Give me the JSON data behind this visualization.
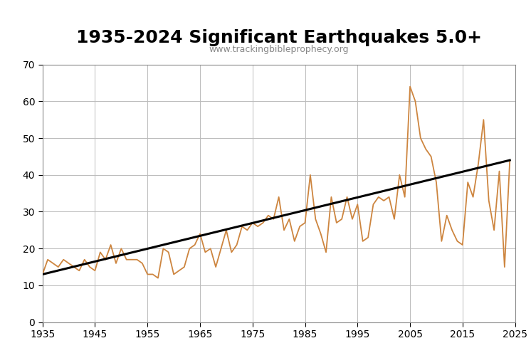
{
  "title": "1935-2024 Significant Earthquakes 5.0+",
  "subtitle": "www.trackingbibleprophecy.org",
  "line_color": "#cd853f",
  "trend_color": "#000000",
  "background_color": "#ffffff",
  "grid_color": "#bbbbbb",
  "title_fontsize": 18,
  "subtitle_fontsize": 9,
  "years": [
    1935,
    1936,
    1937,
    1938,
    1939,
    1940,
    1941,
    1942,
    1943,
    1944,
    1945,
    1946,
    1947,
    1948,
    1949,
    1950,
    1951,
    1952,
    1953,
    1954,
    1955,
    1956,
    1957,
    1958,
    1959,
    1960,
    1961,
    1962,
    1963,
    1964,
    1965,
    1966,
    1967,
    1968,
    1969,
    1970,
    1971,
    1972,
    1973,
    1974,
    1975,
    1976,
    1977,
    1978,
    1979,
    1980,
    1981,
    1982,
    1983,
    1984,
    1985,
    1986,
    1987,
    1988,
    1989,
    1990,
    1991,
    1992,
    1993,
    1994,
    1995,
    1996,
    1997,
    1998,
    1999,
    2000,
    2001,
    2002,
    2003,
    2004,
    2005,
    2006,
    2007,
    2008,
    2009,
    2010,
    2011,
    2012,
    2013,
    2014,
    2015,
    2016,
    2017,
    2018,
    2019,
    2020,
    2021,
    2022,
    2023,
    2024
  ],
  "values": [
    13,
    17,
    16,
    15,
    17,
    16,
    15,
    14,
    17,
    15,
    14,
    19,
    17,
    21,
    16,
    20,
    17,
    17,
    17,
    16,
    13,
    13,
    12,
    20,
    19,
    13,
    14,
    15,
    20,
    21,
    24,
    19,
    20,
    15,
    20,
    25,
    19,
    21,
    26,
    25,
    27,
    26,
    27,
    29,
    28,
    34,
    25,
    28,
    22,
    26,
    27,
    40,
    28,
    24,
    19,
    34,
    27,
    28,
    34,
    28,
    32,
    22,
    23,
    32,
    34,
    33,
    34,
    28,
    40,
    34,
    64,
    60,
    50,
    47,
    45,
    38,
    22,
    29,
    25,
    22,
    21,
    38,
    34,
    43,
    55,
    33,
    25,
    41,
    15,
    44
  ],
  "xlim": [
    1935,
    2025
  ],
  "ylim": [
    0,
    70
  ],
  "yticks": [
    0,
    10,
    20,
    30,
    40,
    50,
    60,
    70
  ],
  "xticks": [
    1935,
    1945,
    1955,
    1965,
    1975,
    1985,
    1995,
    2005,
    2015,
    2025
  ],
  "trend_x": [
    1935,
    2024
  ],
  "trend_y": [
    13,
    44
  ]
}
